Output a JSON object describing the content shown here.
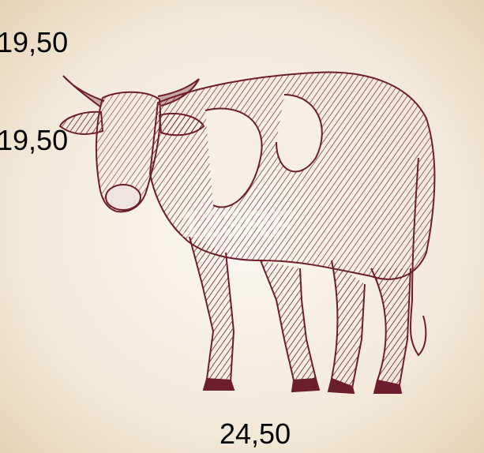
{
  "labels": [
    "19,50",
    "19,50",
    "24,50"
  ],
  "watermark": "123RF"
}
